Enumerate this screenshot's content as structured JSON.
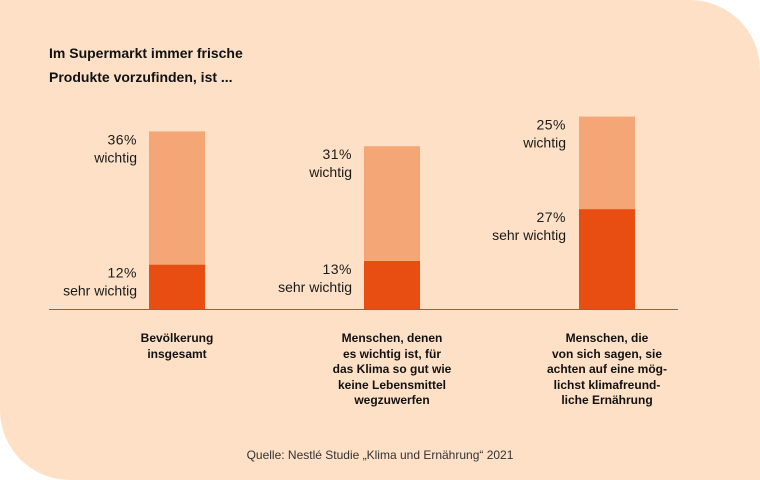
{
  "chart_data": {
    "type": "bar",
    "stacked": true,
    "title_lines": [
      "Im Supermarkt immer frische",
      "Produkte vorzufinden, ist ..."
    ],
    "categories": [
      [
        "Bevölkerung",
        "insgesamt"
      ],
      [
        "Menschen, denen",
        "es wichtig ist, für",
        "das Klima so gut wie",
        "keine Lebensmittel",
        "wegzuwerfen"
      ],
      [
        "Menschen, die",
        "von sich sagen, sie",
        "achten auf eine mög-",
        "lichst klimafreund-",
        "liche Ernährung"
      ]
    ],
    "series": [
      {
        "name": "sehr wichtig",
        "values": [
          12,
          13,
          27
        ],
        "labels": [
          "12%",
          "13%",
          "27%"
        ],
        "color": "#e84e12"
      },
      {
        "name": "wichtig",
        "values": [
          36,
          31,
          25
        ],
        "labels": [
          "36%",
          "31%",
          "25%"
        ],
        "color": "#f5a676"
      }
    ],
    "ylim": [
      0,
      55
    ],
    "legend": "none",
    "grid": false,
    "source": "Quelle: Nestlé Studie „Klima und Ernährung“ 2021"
  },
  "colors": {
    "background": "#fde0c6",
    "baseline": "#6e6e6e"
  }
}
